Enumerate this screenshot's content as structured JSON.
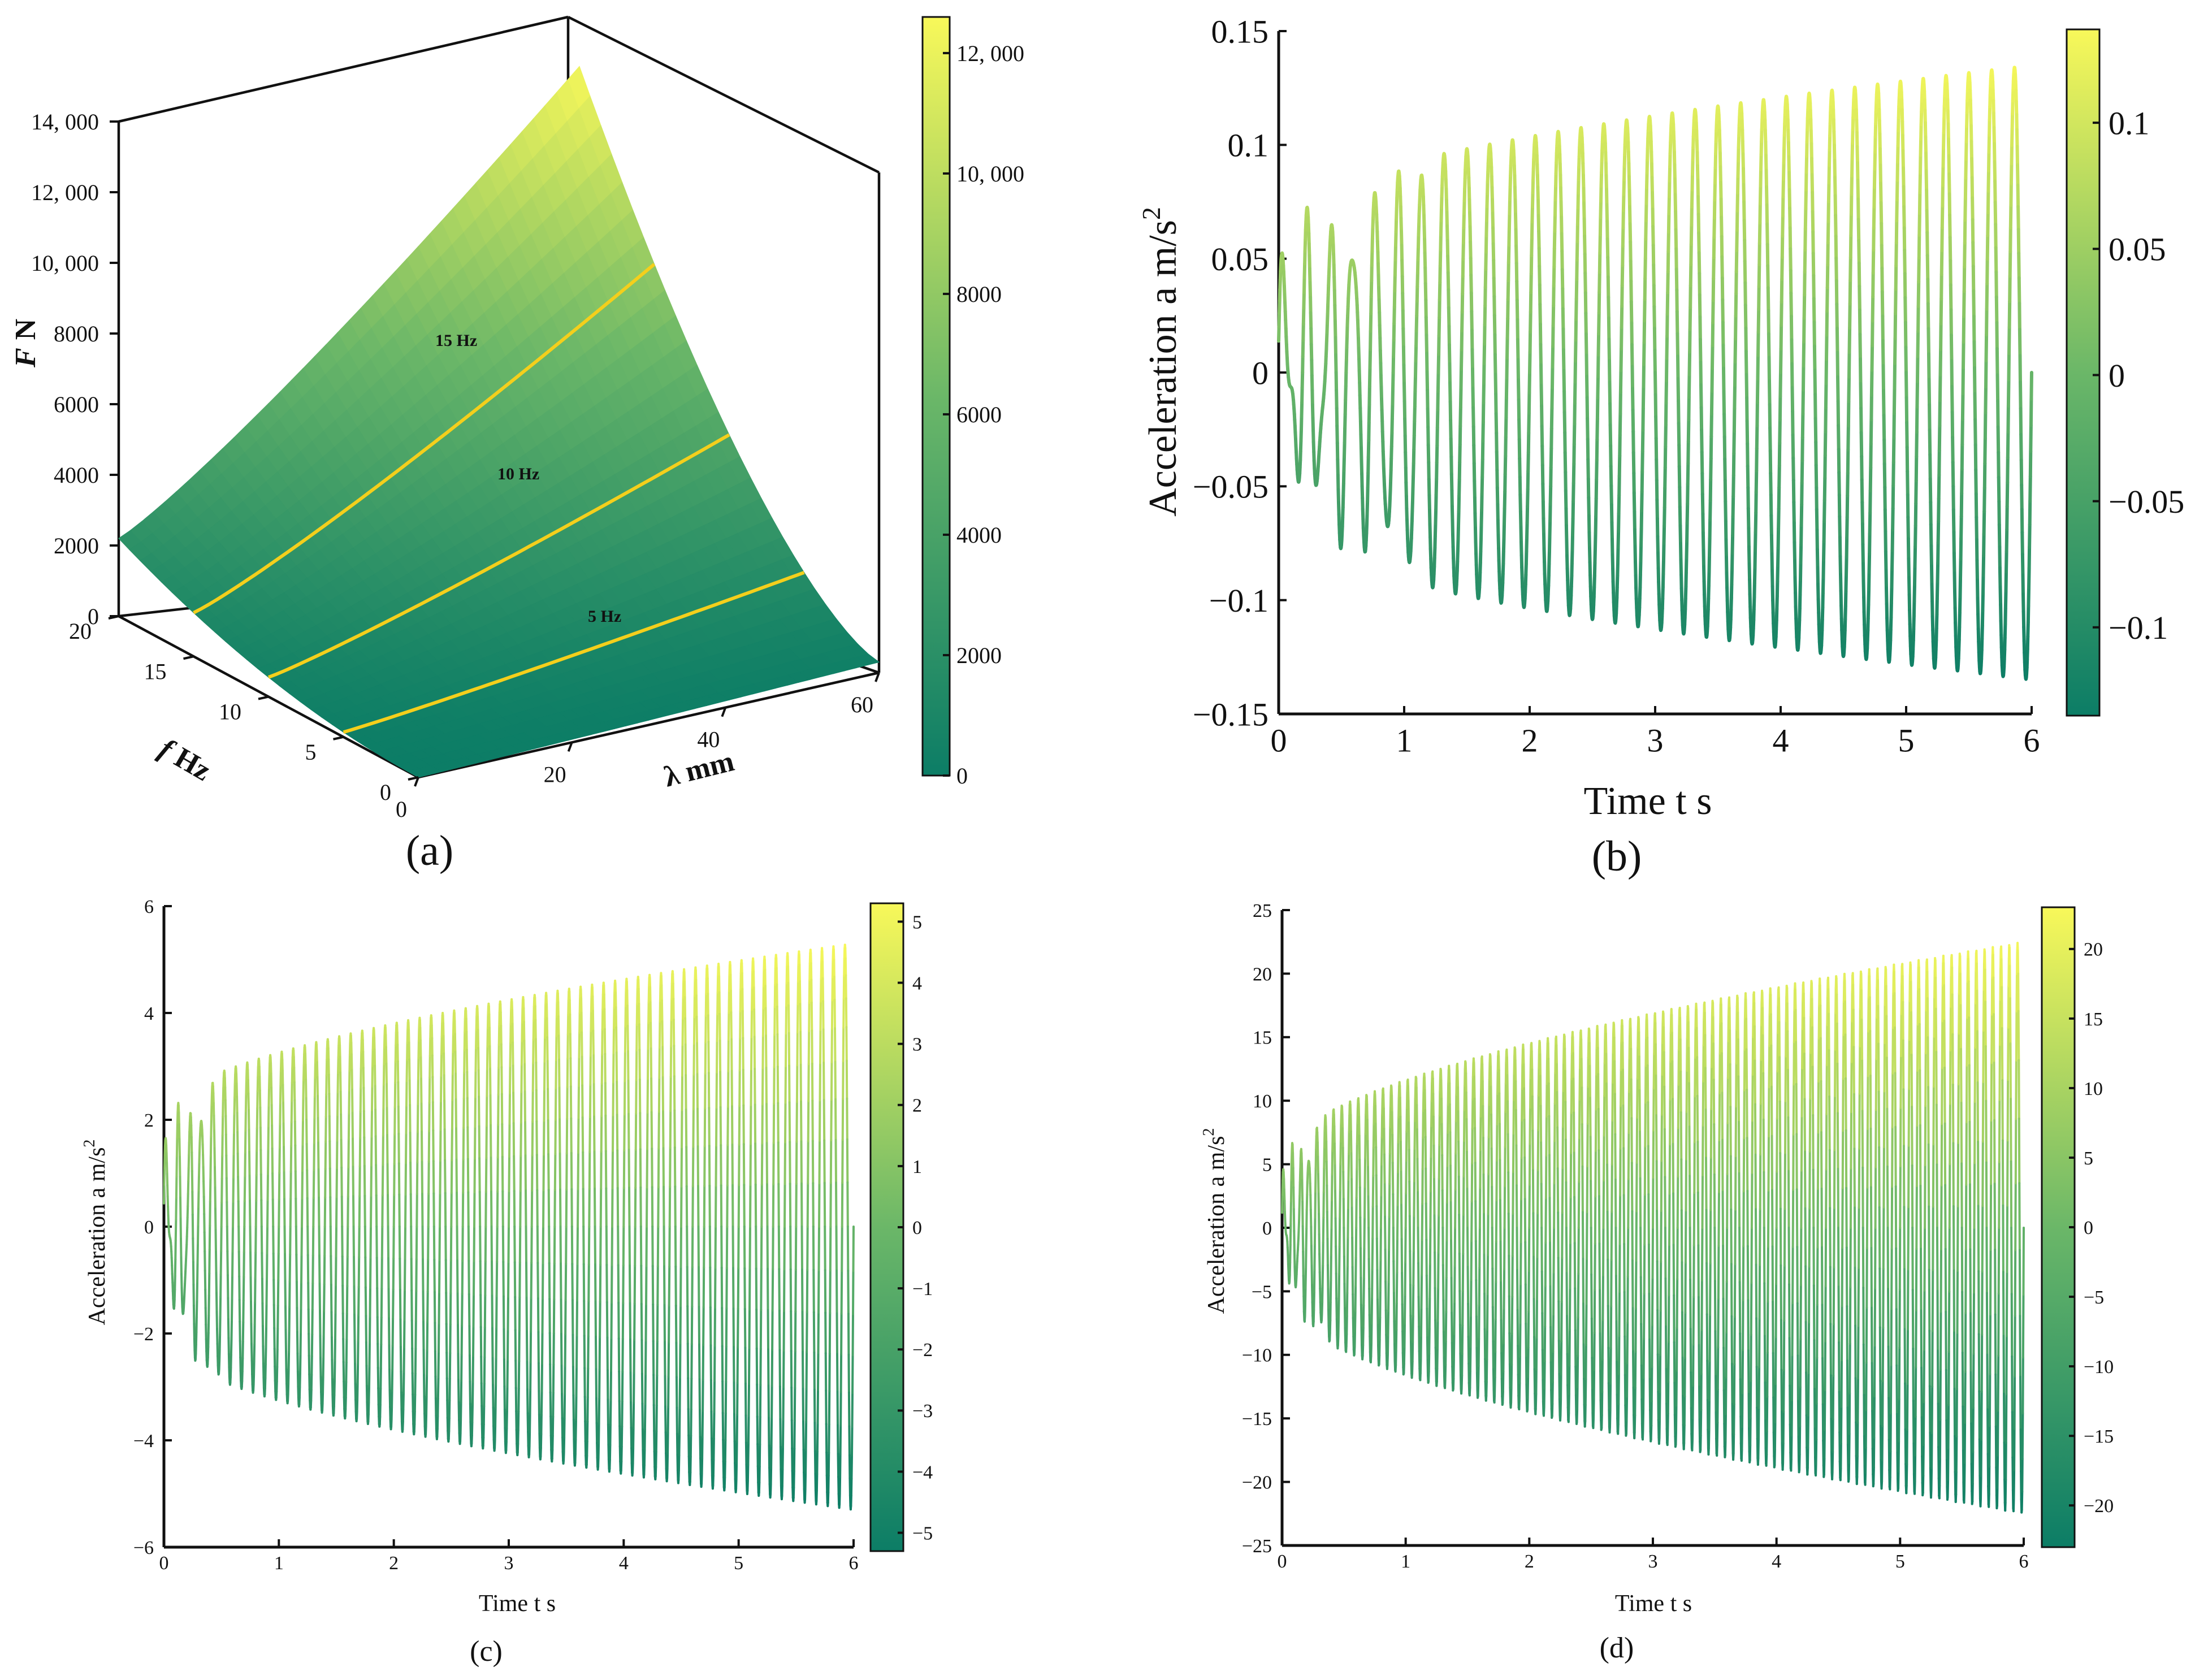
{
  "colors": {
    "low": "#0c7d66",
    "mid": "#6bb768",
    "high": "#f8f85a",
    "contour": "#f4cf1c",
    "axis": "#111111"
  },
  "chart_data": [
    {
      "id": "a",
      "panel_label": "(a)",
      "type": "surface",
      "title": "",
      "zlabel_var": "F",
      "zlabel_unit": "N",
      "xlabel": "λ mm",
      "ylabel_var": "f",
      "ylabel_unit": "Hz",
      "x_ticks": [
        "0",
        "20",
        "40",
        "60"
      ],
      "y_ticks": [
        "20",
        "15",
        "10",
        "5",
        "0"
      ],
      "z_ticks": [
        "0",
        "2000",
        "4000",
        "6000",
        "8000",
        "10, 000",
        "12, 000",
        "14, 000"
      ],
      "xlim": [
        0,
        60
      ],
      "ylim": [
        0,
        20
      ],
      "zlim": [
        0,
        14000
      ],
      "contours": [
        {
          "label": "15 Hz",
          "f": 15
        },
        {
          "label": "10 Hz",
          "f": 10
        },
        {
          "label": "5 Hz",
          "f": 5
        }
      ],
      "corner_values": {
        "f20_l0": 2200,
        "f20_l60": 12600,
        "f0_l60": 300
      },
      "colorbar": {
        "ticks": [
          "0",
          "2000",
          "4000",
          "6000",
          "8000",
          "10, 000",
          "12, 000"
        ],
        "range": [
          0,
          12600
        ]
      }
    },
    {
      "id": "b",
      "panel_label": "(b)",
      "type": "line",
      "xlabel": "Time t  s",
      "ylabel": "Acceleration a  m/s",
      "ylabel_sup": "2",
      "x_ticks": [
        "0",
        "1",
        "2",
        "3",
        "4",
        "5",
        "6"
      ],
      "y_ticks": [
        "−0.15",
        "−0.1",
        "−0.05",
        "0",
        "0.05",
        "0.1",
        "0.15"
      ],
      "xlim": [
        0,
        6
      ],
      "ylim": [
        -0.15,
        0.15
      ],
      "signal": {
        "cycles": 33,
        "amp_start": 0.07,
        "amp_end": 0.135,
        "transient_s": 1.3
      },
      "colorbar": {
        "ticks": [
          "−0.1",
          "−0.05",
          "0",
          "0.05",
          "0.1"
        ],
        "range": [
          -0.135,
          0.137
        ]
      }
    },
    {
      "id": "c",
      "panel_label": "(c)",
      "type": "line",
      "xlabel": "Time t  s",
      "ylabel": "Acceleration a  m/s",
      "ylabel_sup": "2",
      "x_ticks": [
        "0",
        "1",
        "2",
        "3",
        "4",
        "5",
        "6"
      ],
      "y_ticks": [
        "−6",
        "−4",
        "−2",
        "0",
        "2",
        "4",
        "6"
      ],
      "xlim": [
        0,
        6
      ],
      "ylim": [
        -6,
        6
      ],
      "signal": {
        "cycles": 60,
        "amp_start": 2.2,
        "amp_end": 5.3,
        "transient_s": 0.5
      },
      "colorbar": {
        "ticks": [
          "−5",
          "−4",
          "−3",
          "−2",
          "−1",
          "0",
          "1",
          "2",
          "3",
          "4",
          "5"
        ],
        "range": [
          -5.3,
          5.3
        ]
      }
    },
    {
      "id": "d",
      "panel_label": "(d)",
      "type": "line",
      "xlabel": "Time t  s",
      "ylabel": "Acceleration a  m/s",
      "ylabel_sup": "2",
      "x_ticks": [
        "0",
        "1",
        "2",
        "3",
        "4",
        "5",
        "6"
      ],
      "y_ticks": [
        "−25",
        "−20",
        "−15",
        "−10",
        "−5",
        "0",
        "5",
        "10",
        "15",
        "20",
        "25"
      ],
      "xlim": [
        0,
        6
      ],
      "ylim": [
        -25,
        25
      ],
      "signal": {
        "cycles": 90,
        "amp_start": 6,
        "amp_end": 22.5,
        "transient_s": 0.4
      },
      "colorbar": {
        "ticks": [
          "−20",
          "−15",
          "−10",
          "−5",
          "0",
          "5",
          "10",
          "15",
          "20"
        ],
        "range": [
          -23,
          23
        ]
      }
    }
  ]
}
